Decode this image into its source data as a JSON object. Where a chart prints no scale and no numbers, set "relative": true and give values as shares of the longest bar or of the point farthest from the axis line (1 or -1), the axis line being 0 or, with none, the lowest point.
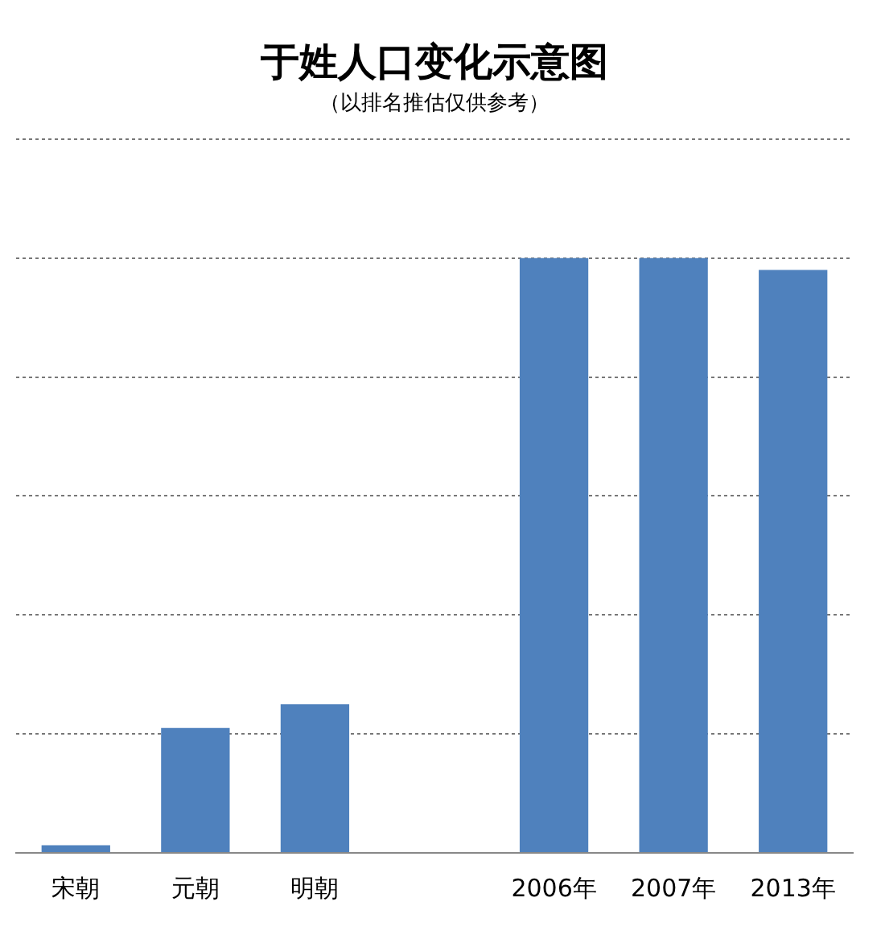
{
  "chart_data": {
    "type": "bar",
    "title": "于姓人口变化示意图",
    "subtitle": "（以排名推估仅供参考）",
    "categories": [
      "宋朝",
      "元朝",
      "明朝",
      null,
      "2006年",
      "2007年",
      "2013年"
    ],
    "values": [
      0.013,
      0.21,
      0.25,
      null,
      1,
      1,
      0.98
    ],
    "color": "#4f81bd",
    "relative": true,
    "grid": "y",
    "legend": false
  }
}
